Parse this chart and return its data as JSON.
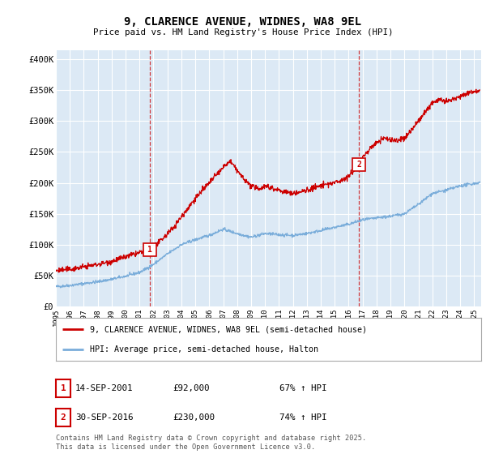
{
  "title": "9, CLARENCE AVENUE, WIDNES, WA8 9EL",
  "subtitle": "Price paid vs. HM Land Registry's House Price Index (HPI)",
  "ylabel_ticks": [
    "£0",
    "£50K",
    "£100K",
    "£150K",
    "£200K",
    "£250K",
    "£300K",
    "£350K",
    "£400K"
  ],
  "ytick_values": [
    0,
    50000,
    100000,
    150000,
    200000,
    250000,
    300000,
    350000,
    400000
  ],
  "ylim": [
    0,
    415000
  ],
  "xlim_start": 1995.0,
  "xlim_end": 2025.5,
  "red_color": "#cc0000",
  "blue_color": "#7aadda",
  "bg_color": "#dce9f5",
  "grid_color": "#ffffff",
  "sale1_x": 2001.71,
  "sale1_y": 92000,
  "sale1_label": "1",
  "sale2_x": 2016.75,
  "sale2_y": 230000,
  "sale2_label": "2",
  "vline1_x": 2001.71,
  "vline2_x": 2016.75,
  "legend_line1": "9, CLARENCE AVENUE, WIDNES, WA8 9EL (semi-detached house)",
  "legend_line2": "HPI: Average price, semi-detached house, Halton",
  "table_row1": [
    "1",
    "14-SEP-2001",
    "£92,000",
    "67% ↑ HPI"
  ],
  "table_row2": [
    "2",
    "30-SEP-2016",
    "£230,000",
    "74% ↑ HPI"
  ],
  "footnote": "Contains HM Land Registry data © Crown copyright and database right 2025.\nThis data is licensed under the Open Government Licence v3.0.",
  "xtick_years": [
    1995,
    1996,
    1997,
    1998,
    1999,
    2000,
    2001,
    2002,
    2003,
    2004,
    2005,
    2006,
    2007,
    2008,
    2009,
    2010,
    2011,
    2012,
    2013,
    2014,
    2015,
    2016,
    2017,
    2018,
    2019,
    2020,
    2021,
    2022,
    2023,
    2024,
    2025
  ],
  "hpi_anchors_x": [
    1995.0,
    1996.0,
    1997.0,
    1998.0,
    1999.0,
    2000.0,
    2001.0,
    2002.0,
    2003.0,
    2004.0,
    2005.0,
    2006.0,
    2007.0,
    2008.0,
    2009.0,
    2010.0,
    2011.0,
    2012.0,
    2013.0,
    2014.0,
    2015.0,
    2016.0,
    2017.0,
    2018.0,
    2019.0,
    2020.0,
    2021.0,
    2022.0,
    2023.0,
    2024.0,
    2025.3
  ],
  "hpi_anchors_y": [
    32000,
    34000,
    37000,
    40000,
    44000,
    49000,
    55000,
    68000,
    85000,
    100000,
    108000,
    115000,
    125000,
    118000,
    112000,
    118000,
    116000,
    115000,
    118000,
    123000,
    128000,
    133000,
    140000,
    143000,
    146000,
    150000,
    165000,
    183000,
    188000,
    195000,
    200000
  ],
  "prop_anchors_x": [
    1995.0,
    1996.0,
    1997.0,
    1998.0,
    1999.0,
    2000.0,
    2001.0,
    2001.71,
    2002.5,
    2003.5,
    2004.5,
    2005.0,
    2006.0,
    2007.0,
    2007.5,
    2008.0,
    2008.5,
    2009.0,
    2009.5,
    2010.0,
    2010.5,
    2011.0,
    2011.5,
    2012.0,
    2012.5,
    2013.0,
    2013.5,
    2014.0,
    2014.5,
    2015.0,
    2015.5,
    2016.0,
    2016.75,
    2017.0,
    2017.5,
    2018.0,
    2018.5,
    2019.0,
    2019.5,
    2020.0,
    2020.5,
    2021.0,
    2021.5,
    2022.0,
    2022.5,
    2023.0,
    2023.5,
    2024.0,
    2024.5,
    2025.0,
    2025.3
  ],
  "prop_anchors_y": [
    58000,
    60000,
    64000,
    68000,
    73000,
    80000,
    87000,
    92000,
    105000,
    130000,
    160000,
    175000,
    200000,
    225000,
    235000,
    220000,
    205000,
    195000,
    190000,
    195000,
    192000,
    188000,
    185000,
    183000,
    185000,
    188000,
    192000,
    195000,
    198000,
    200000,
    205000,
    210000,
    230000,
    240000,
    255000,
    265000,
    272000,
    270000,
    268000,
    272000,
    285000,
    300000,
    315000,
    330000,
    335000,
    330000,
    335000,
    340000,
    345000,
    348000,
    350000
  ]
}
